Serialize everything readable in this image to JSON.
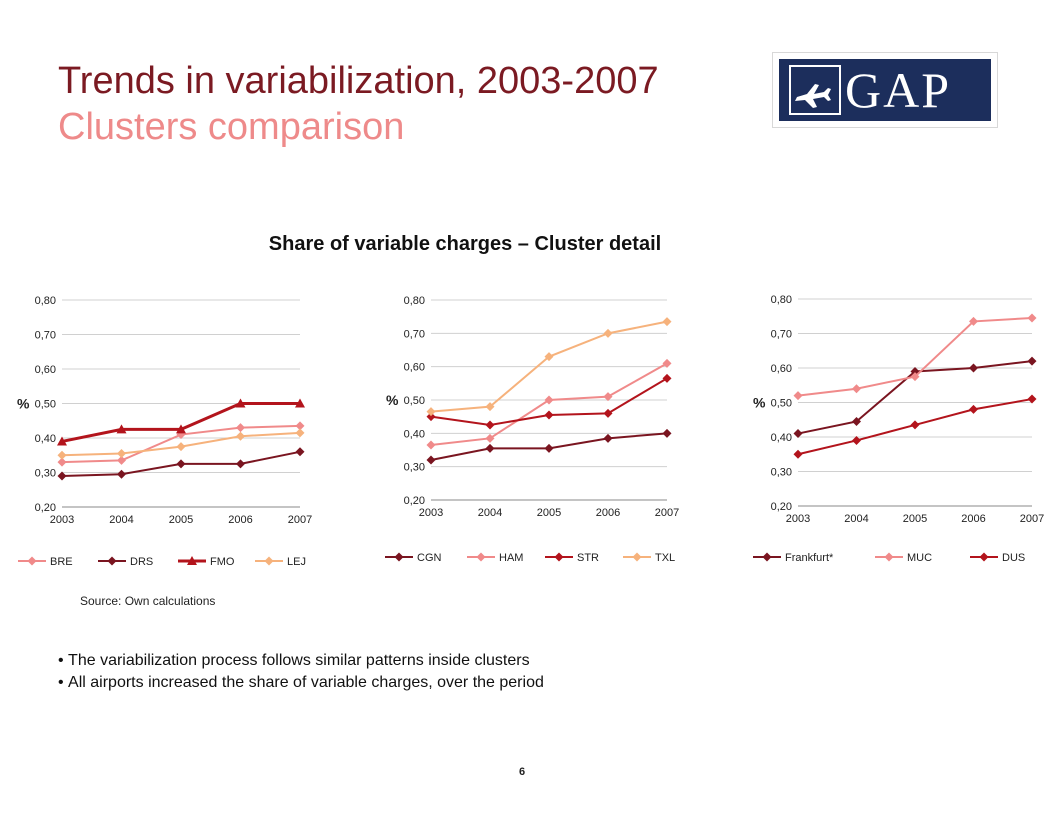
{
  "title": "Trends in variabilization, 2003-2007",
  "subtitle": "Clusters comparison",
  "logo_text": "GAP",
  "logo_icon": "airplane-icon",
  "chart_title": "Share of variable charges – Cluster detail",
  "source": "Source: Own calculations",
  "bullets": [
    "The variabilization process follows similar patterns inside clusters",
    "All airports increased the share of variable charges, over the period"
  ],
  "page_number": "6",
  "colors": {
    "title": "#7b1a22",
    "subtitle": "#ee8a8a",
    "logo_bg": "#1c2e5c"
  },
  "chart_data": [
    {
      "type": "line",
      "ylabel": "%",
      "ylim": [
        0.2,
        0.8
      ],
      "yticks": [
        "0,20",
        "0,30",
        "0,40",
        "0,50",
        "0,60",
        "0,70",
        "0,80"
      ],
      "categories": [
        "2003",
        "2004",
        "2005",
        "2006",
        "2007"
      ],
      "grid": true,
      "legend": "bottom",
      "series": [
        {
          "name": "BRE",
          "color": "#f08a8a",
          "marker": "diamond",
          "values": [
            0.33,
            0.335,
            0.41,
            0.43,
            0.435
          ]
        },
        {
          "name": "DRS",
          "color": "#7a1520",
          "marker": "diamond",
          "values": [
            0.29,
            0.295,
            0.325,
            0.325,
            0.36
          ]
        },
        {
          "name": "FMO",
          "color": "#b3141c",
          "marker": "triangle",
          "values": [
            0.39,
            0.425,
            0.425,
            0.5,
            0.5
          ]
        },
        {
          "name": "LEJ",
          "color": "#f6b27c",
          "marker": "diamond",
          "values": [
            0.35,
            0.355,
            0.375,
            0.405,
            0.415
          ]
        }
      ]
    },
    {
      "type": "line",
      "ylabel": "%",
      "ylim": [
        0.2,
        0.8
      ],
      "yticks": [
        "0,20",
        "0,30",
        "0,40",
        "0,50",
        "0,60",
        "0,70",
        "0,80"
      ],
      "categories": [
        "2003",
        "2004",
        "2005",
        "2006",
        "2007"
      ],
      "grid": true,
      "legend": "bottom",
      "series": [
        {
          "name": "CGN",
          "color": "#7a1520",
          "marker": "diamond",
          "values": [
            0.32,
            0.355,
            0.355,
            0.385,
            0.4
          ]
        },
        {
          "name": "HAM",
          "color": "#f08a8a",
          "marker": "diamond",
          "values": [
            0.365,
            0.385,
            0.5,
            0.51,
            0.61
          ]
        },
        {
          "name": "STR",
          "color": "#b3141c",
          "marker": "diamond",
          "values": [
            0.45,
            0.425,
            0.455,
            0.46,
            0.565
          ]
        },
        {
          "name": "TXL",
          "color": "#f6b27c",
          "marker": "diamond",
          "values": [
            0.465,
            0.48,
            0.63,
            0.7,
            0.735
          ]
        }
      ]
    },
    {
      "type": "line",
      "ylabel": "%",
      "ylim": [
        0.2,
        0.8
      ],
      "yticks": [
        "0,20",
        "0,30",
        "0,40",
        "0,50",
        "0,60",
        "0,70",
        "0,80"
      ],
      "categories": [
        "2003",
        "2004",
        "2005",
        "2006",
        "2007"
      ],
      "grid": true,
      "legend": "bottom",
      "series": [
        {
          "name": "Frankfurt*",
          "color": "#7a1520",
          "marker": "diamond",
          "values": [
            0.41,
            0.445,
            0.59,
            0.6,
            0.62
          ]
        },
        {
          "name": "MUC",
          "color": "#f08a8a",
          "marker": "diamond",
          "values": [
            0.52,
            0.54,
            0.575,
            0.735,
            0.745
          ]
        },
        {
          "name": "DUS",
          "color": "#b3141c",
          "marker": "diamond",
          "values": [
            0.35,
            0.39,
            0.435,
            0.48,
            0.51
          ]
        }
      ]
    }
  ]
}
